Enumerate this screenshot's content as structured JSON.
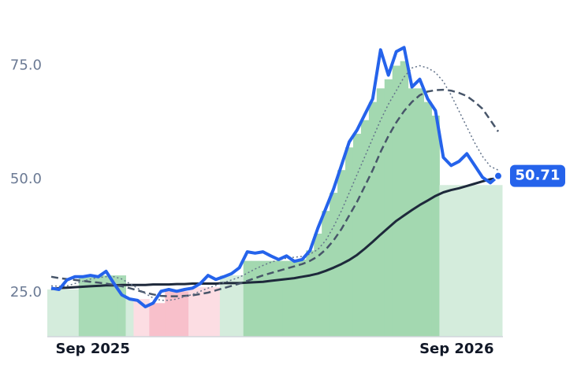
{
  "chart_data": {
    "type": "line",
    "x": [
      0,
      1,
      2,
      3,
      4,
      5,
      6,
      7,
      8,
      9,
      10,
      11,
      12,
      13,
      14,
      15,
      16,
      17,
      18,
      19,
      20,
      21,
      22,
      23,
      24,
      25,
      26,
      27,
      28,
      29,
      30,
      31,
      32,
      33,
      34,
      35,
      36,
      37,
      38,
      39,
      40,
      41,
      42,
      43,
      44,
      45,
      46,
      47,
      48,
      49,
      50,
      51,
      52,
      53,
      54,
      55,
      56,
      57
    ],
    "xlim": [
      0,
      57
    ],
    "xticks": [
      {
        "value": 5.3,
        "label": "Sep 2025"
      },
      {
        "value": 51.7,
        "label": "Sep 2026"
      }
    ],
    "ylim": [
      15.3,
      86
    ],
    "yticks": [
      {
        "value": 25,
        "label": "25.0"
      },
      {
        "value": 50,
        "label": "50.0"
      },
      {
        "value": 75,
        "label": "75.0"
      }
    ],
    "shading": {
      "values": [
        25.7,
        25.7,
        25.7,
        25.7,
        28.8,
        28.8,
        28.8,
        28.8,
        28.8,
        28.8,
        23.6,
        23.6,
        23.6,
        22.7,
        22.7,
        25.3,
        25.3,
        25.3,
        26.2,
        26.2,
        26.2,
        26.2,
        28.8,
        28.8,
        28.8,
        32,
        32,
        32,
        32,
        32,
        32,
        31.9,
        32.3,
        34.3,
        38,
        43,
        47,
        52,
        57,
        60,
        63,
        67,
        70,
        72,
        75,
        76,
        70,
        70,
        67,
        64,
        48.7,
        48.7,
        48.7,
        48.7,
        48.7,
        48.7,
        48.7,
        48.7
      ],
      "colors": [
        "#d4ecdc",
        "#d4ecdc",
        "#d4ecdc",
        "#d4ecdc",
        "#a9dbb6",
        "#a9dbb6",
        "#a9dbb6",
        "#a9dbb6",
        "#a9dbb6",
        "#a9dbb6",
        "#d4ecdc",
        "#fcdde3",
        "#fcdde3",
        "#f8c0cb",
        "#f8c0cb",
        "#f8c0cb",
        "#f8c0cb",
        "#f8c0cb",
        "#fcdde3",
        "#fcdde3",
        "#fcdde3",
        "#fcdde3",
        "#d4ecdc",
        "#d4ecdc",
        "#d4ecdc",
        "#a3d8b0",
        "#a3d8b0",
        "#a3d8b0",
        "#a3d8b0",
        "#a3d8b0",
        "#a3d8b0",
        "#a3d8b0",
        "#a3d8b0",
        "#a3d8b0",
        "#a3d8b0",
        "#a3d8b0",
        "#a3d8b0",
        "#a3d8b0",
        "#a3d8b0",
        "#a3d8b0",
        "#a3d8b0",
        "#a3d8b0",
        "#a3d8b0",
        "#a3d8b0",
        "#a3d8b0",
        "#a3d8b0",
        "#a3d8b0",
        "#a3d8b0",
        "#a3d8b0",
        "#a3d8b0",
        "#d4ecdc",
        "#d4ecdc",
        "#d4ecdc",
        "#d4ecdc",
        "#d4ecdc",
        "#d4ecdc",
        "#d4ecdc",
        "#d4ecdc"
      ]
    },
    "series": [
      {
        "color": "#1e293b",
        "width": 3,
        "dash": "solid",
        "values": [
          25.8,
          26,
          26.1,
          26.2,
          26.3,
          26.4,
          26.5,
          26.6,
          26.6,
          26.7,
          26.7,
          26.7,
          26.7,
          26.8,
          26.8,
          26.8,
          26.9,
          26.9,
          27,
          27,
          27,
          27,
          27.1,
          27.1,
          27.1,
          27.2,
          27.3,
          27.4,
          27.6,
          27.8,
          28,
          28.2,
          28.5,
          28.8,
          29.2,
          29.8,
          30.5,
          31.3,
          32.2,
          33.3,
          34.7,
          36.2,
          37.8,
          39.3,
          40.8,
          42,
          43.2,
          44.3,
          45.3,
          46.3,
          47.1,
          47.6,
          48,
          48.5,
          49,
          49.5,
          50,
          50.2
        ]
      },
      {
        "color": "#475569",
        "width": 2.5,
        "dash": "dashed",
        "values": [
          28.5,
          28.2,
          28,
          27.8,
          27.6,
          27.4,
          27.2,
          27,
          26.7,
          26.4,
          26,
          25.5,
          25,
          24.6,
          24.3,
          24.2,
          24.2,
          24.3,
          24.4,
          24.7,
          25,
          25.5,
          26,
          26.5,
          27,
          27.6,
          28.2,
          28.8,
          29.3,
          29.8,
          30.3,
          30.8,
          31.3,
          32,
          33,
          34.5,
          36.5,
          39,
          42,
          45,
          48.5,
          52,
          56,
          59.5,
          62.5,
          65,
          67,
          68.5,
          69.3,
          69.6,
          69.7,
          69.5,
          69,
          68.3,
          67,
          65.5,
          63,
          60.5
        ]
      },
      {
        "color": "#64748b",
        "width": 1.5,
        "dash": "dotted",
        "values": [
          26.5,
          26.4,
          26.5,
          27,
          27.5,
          28,
          28.3,
          28.5,
          28.5,
          28,
          27,
          26,
          24.8,
          23.8,
          23.3,
          23.3,
          23.6,
          24.1,
          24.6,
          25.3,
          26,
          26.6,
          27.2,
          27.8,
          28.4,
          29.3,
          30.2,
          31,
          31.7,
          32.2,
          32.6,
          32.8,
          33,
          33.5,
          34.5,
          36.5,
          39.5,
          43,
          47,
          51,
          55,
          59,
          63,
          66.5,
          69.5,
          72.5,
          74.5,
          75,
          74.5,
          73.5,
          71.5,
          68.5,
          65,
          61.5,
          58,
          55,
          52.8,
          52
        ]
      },
      {
        "color": "#2563eb",
        "width": 4,
        "dash": "solid",
        "last_badge": true,
        "values": [
          26,
          25.7,
          27.8,
          28.5,
          28.5,
          28.8,
          28.5,
          29.7,
          27,
          24.5,
          23.6,
          23.3,
          21.9,
          22.7,
          25.3,
          25.7,
          25.3,
          25.7,
          26,
          27,
          28.8,
          27.9,
          28.5,
          29.2,
          30.5,
          34,
          33.7,
          34,
          33.1,
          32.3,
          33.1,
          31.9,
          32.3,
          34.3,
          39.2,
          43.5,
          47.8,
          53,
          58.2,
          60.8,
          64.3,
          67.7,
          78.5,
          72.9,
          78.1,
          79,
          70.3,
          72,
          67.7,
          65.1,
          54.8,
          53,
          53.9,
          55.6,
          53,
          50.4,
          49.2,
          50.71
        ]
      }
    ]
  }
}
